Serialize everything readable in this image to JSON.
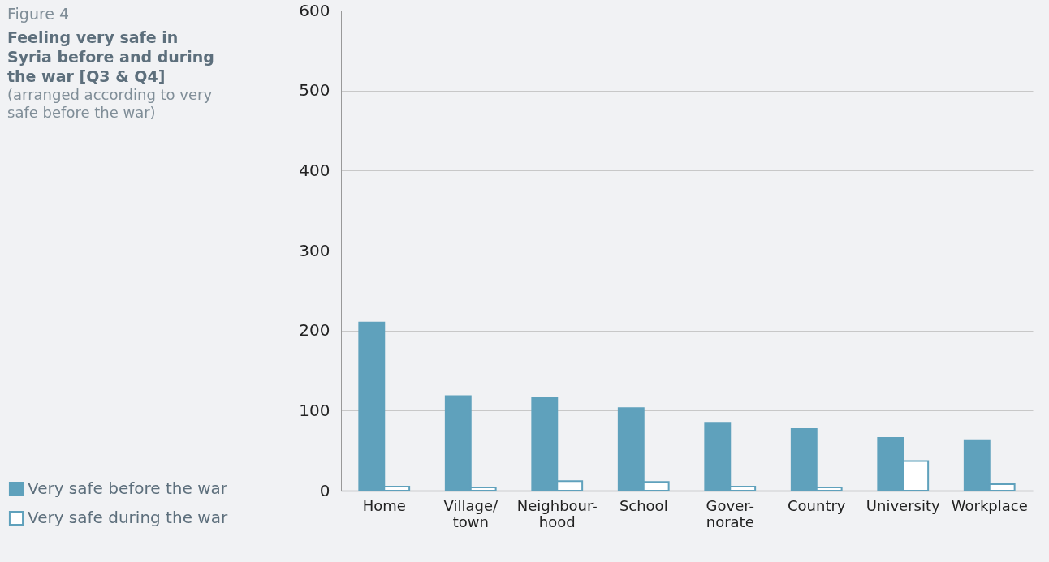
{
  "chart_data": {
    "type": "bar",
    "title": "Feeling very safe in Syria before and during the war [Q3 & Q4]",
    "subtitle": "(arranged according to very safe before the war)",
    "annotations": [
      "Figure 4"
    ],
    "categories": [
      "Home",
      "Village/town",
      "Neighbour-hood",
      "School",
      "Gover-norate",
      "Country",
      "University",
      "Workplace"
    ],
    "series": [
      {
        "name": "Very safe before the war",
        "color": "#5fa1bc",
        "values": [
          210,
          118,
          116,
          103,
          85,
          77,
          66,
          63
        ]
      },
      {
        "name": "Very safe during the war",
        "color": "#ffffff",
        "values": [
          5,
          4,
          12,
          11,
          5,
          4,
          37,
          8
        ]
      }
    ],
    "ylim": [
      0,
      600
    ],
    "yticks": [
      0,
      100,
      200,
      300,
      400,
      500,
      600
    ],
    "grid": "y",
    "legend": "bottom left"
  }
}
